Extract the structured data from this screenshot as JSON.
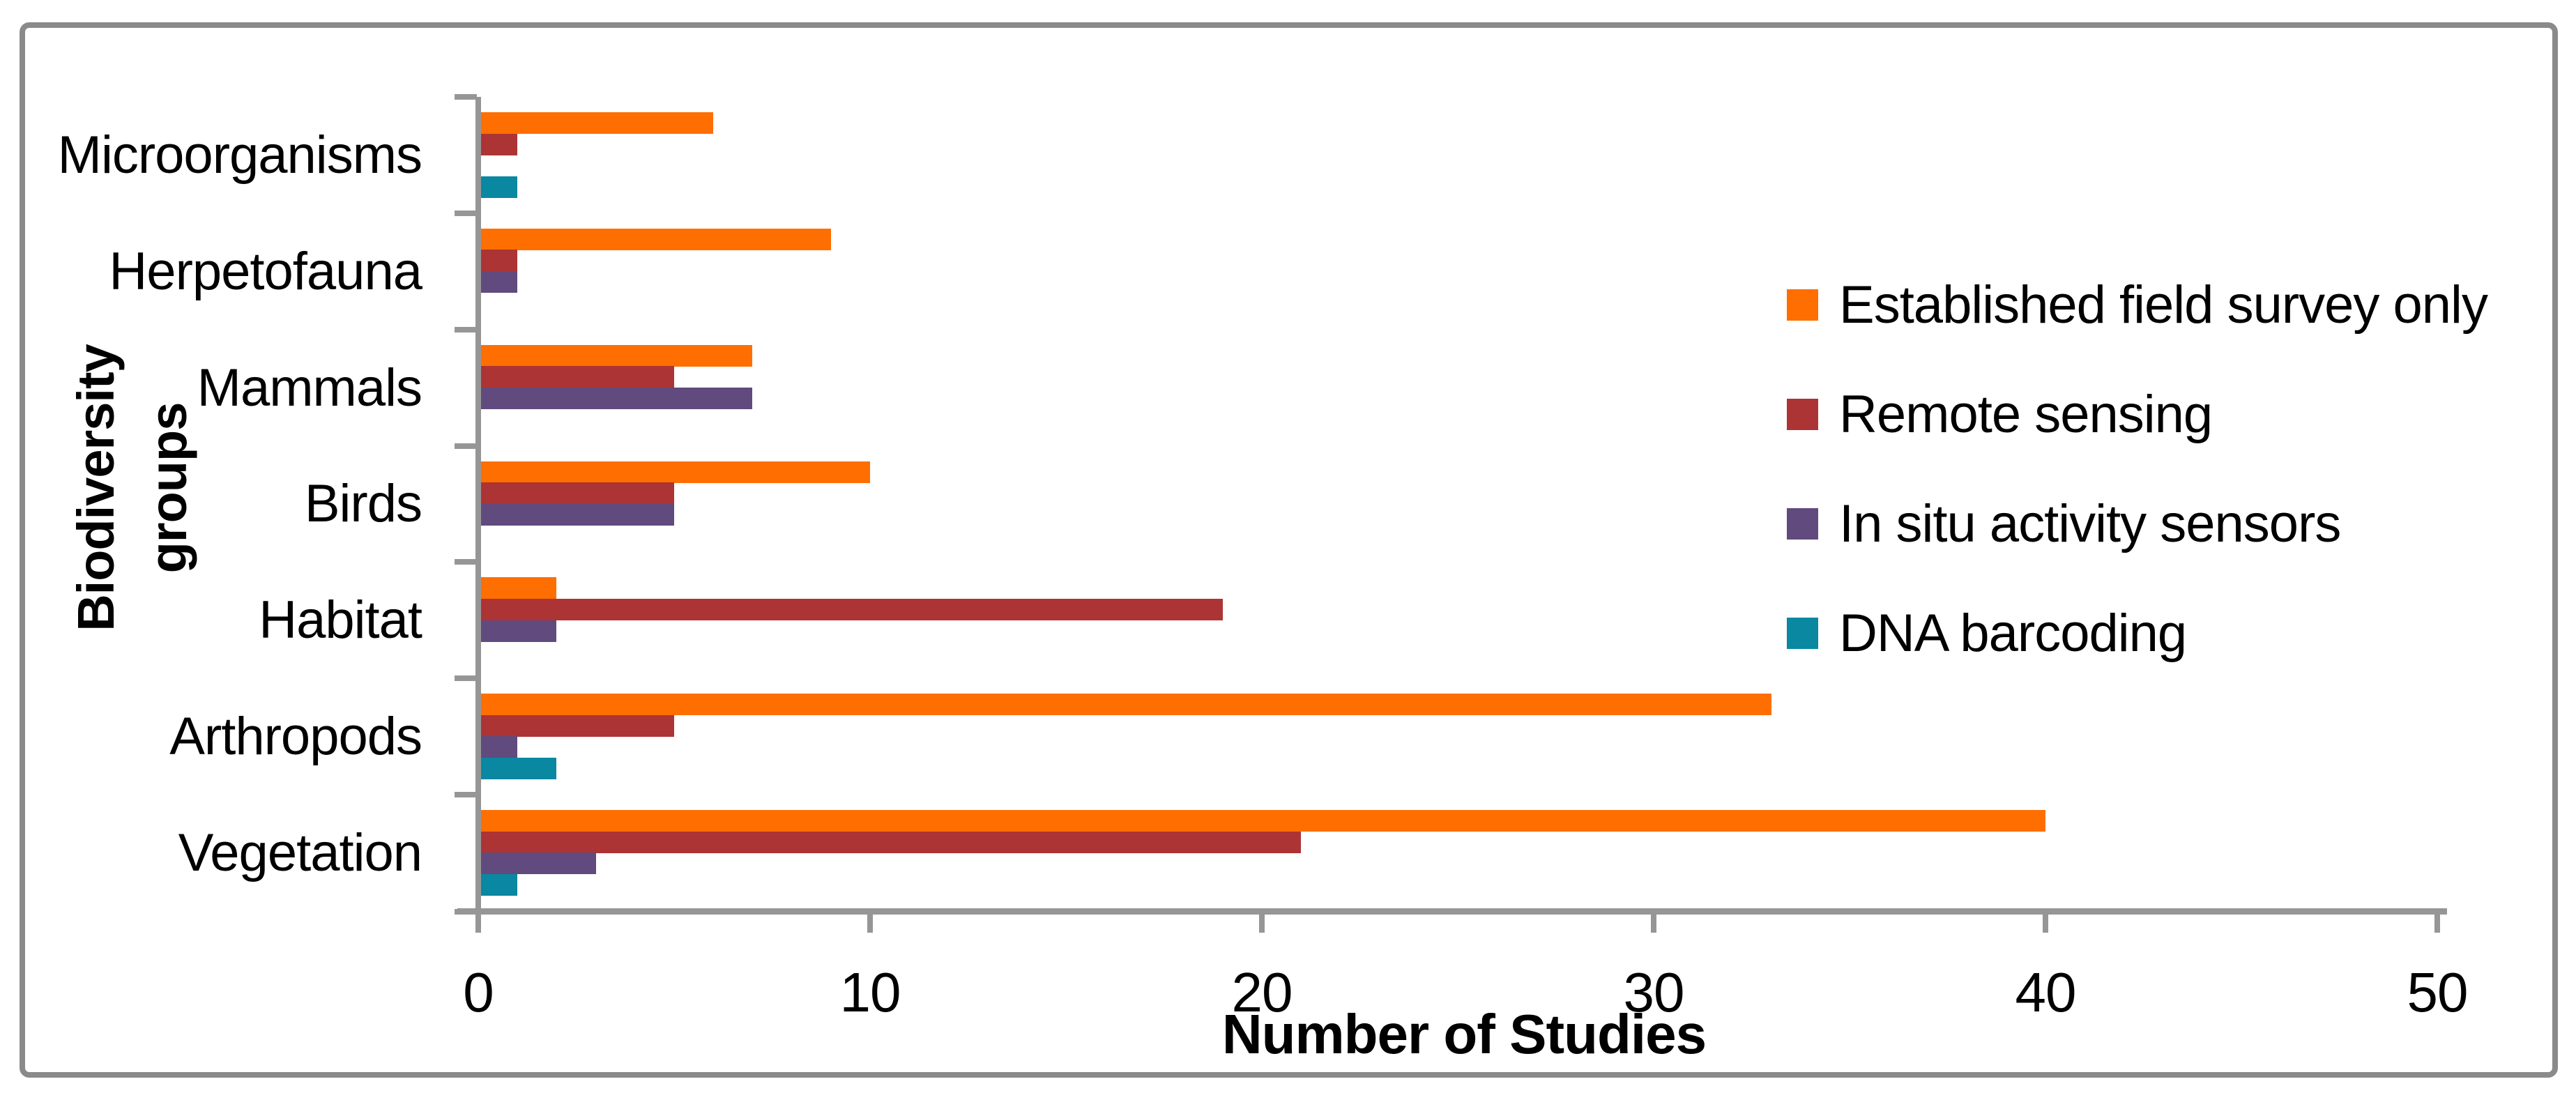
{
  "chart_data": {
    "type": "bar",
    "orientation": "horizontal",
    "title": "",
    "categories": [
      "Microorganisms",
      "Herpetofauna",
      "Mammals",
      "Birds",
      "Habitat",
      "Arthropods",
      "Vegetation"
    ],
    "series": [
      {
        "name": "Established field survey only",
        "color": "#FF6E01",
        "values": [
          6,
          9,
          7,
          10,
          2,
          33,
          40
        ]
      },
      {
        "name": "Remote sensing",
        "color": "#AC3434",
        "values": [
          1,
          1,
          5,
          5,
          19,
          5,
          21
        ]
      },
      {
        "name": "In situ activity sensors",
        "color": "#614A7D",
        "values": [
          0,
          1,
          7,
          5,
          2,
          1,
          3
        ]
      },
      {
        "name": "DNA barcoding",
        "color": "#0A87A1",
        "values": [
          1,
          0,
          0,
          0,
          0,
          2,
          1
        ]
      }
    ],
    "xlabel": "Number of Studies",
    "ylabel": "Biodiversity groups",
    "xlim": [
      0,
      50
    ],
    "xticks": [
      0,
      10,
      20,
      30,
      40,
      50
    ],
    "grid": false,
    "legend_position": "right"
  },
  "axis": {
    "x_title": "Number of Studies",
    "y_title_line1": "Biodiversity",
    "y_title_line2": "groups",
    "tick_labels": [
      "0",
      "10",
      "20",
      "30",
      "40",
      "50"
    ]
  },
  "colors": {
    "axis_gray": "#969696",
    "frame_gray": "#8A8A8A",
    "background": "#FFFFFF",
    "text": "#000000"
  }
}
